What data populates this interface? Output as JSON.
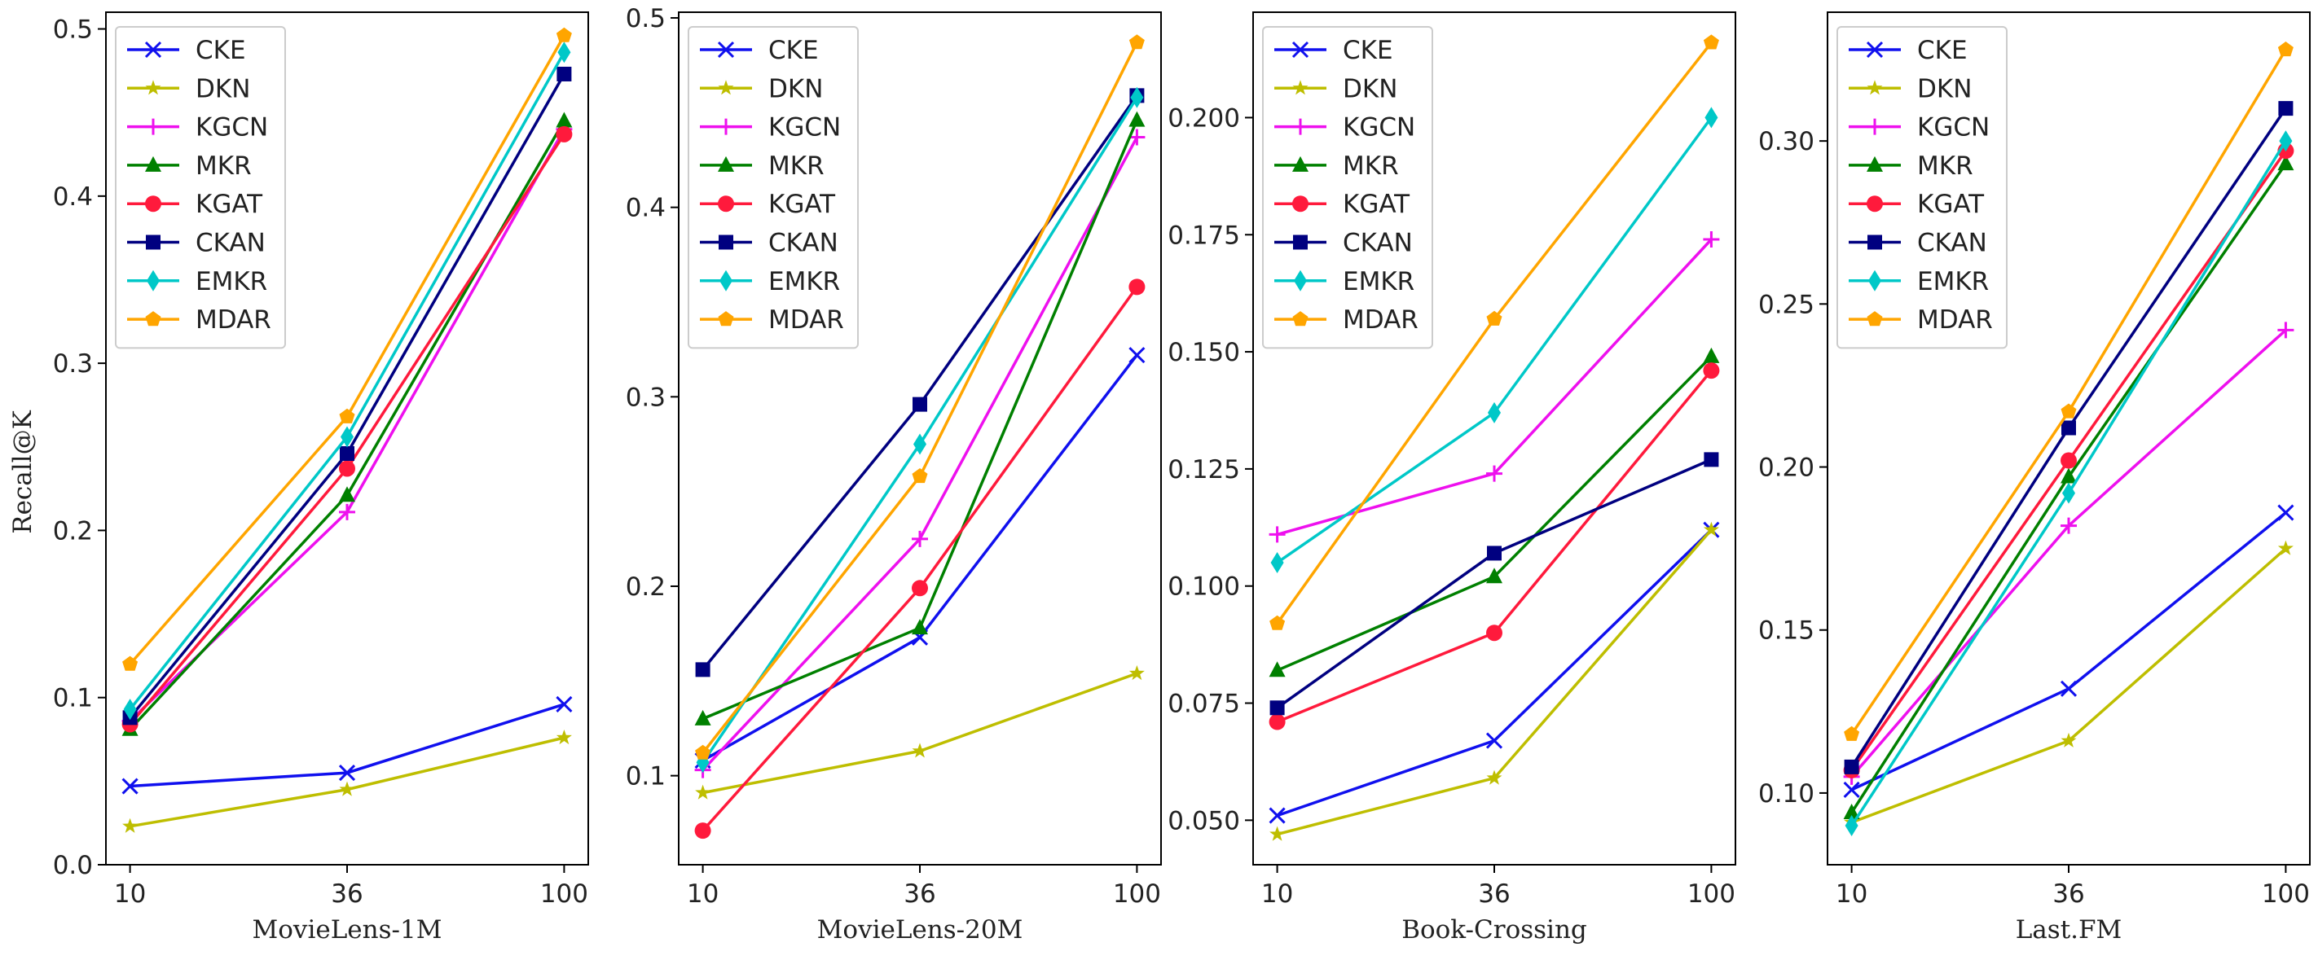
{
  "figure": {
    "ylabel": "Recall@K"
  },
  "chart_data": [
    {
      "type": "line",
      "xlabel": "MovieLens-1M",
      "ylabel": "Recall@K",
      "x": [
        10,
        36,
        100
      ],
      "x_ticks": [
        "10",
        "36",
        "100"
      ],
      "ylim": [
        0,
        0.51
      ],
      "y_ticks": [
        0.0,
        0.1,
        0.2,
        0.3,
        0.4,
        0.5
      ],
      "y_tick_labels": [
        "0.0",
        "0.1",
        "0.2",
        "0.3",
        "0.4",
        "0.5"
      ],
      "legend_position": "top-left",
      "grid": false,
      "series": [
        {
          "name": "CKE",
          "values": [
            0.047,
            0.055,
            0.096
          ]
        },
        {
          "name": "DKN",
          "values": [
            0.023,
            0.045,
            0.076
          ]
        },
        {
          "name": "KGCN",
          "values": [
            0.086,
            0.211,
            0.44
          ]
        },
        {
          "name": "MKR",
          "values": [
            0.081,
            0.221,
            0.445
          ]
        },
        {
          "name": "KGAT",
          "values": [
            0.084,
            0.237,
            0.437
          ]
        },
        {
          "name": "CKAN",
          "values": [
            0.088,
            0.246,
            0.473
          ]
        },
        {
          "name": "EMKR",
          "values": [
            0.093,
            0.256,
            0.486
          ]
        },
        {
          "name": "MDAR",
          "values": [
            0.12,
            0.268,
            0.496
          ]
        }
      ]
    },
    {
      "type": "line",
      "xlabel": "MovieLens-20M",
      "x": [
        10,
        36,
        100
      ],
      "x_ticks": [
        "10",
        "36",
        "100"
      ],
      "ylim": [
        0.053,
        0.503
      ],
      "y_ticks": [
        0.1,
        0.2,
        0.3,
        0.4,
        0.5
      ],
      "y_tick_labels": [
        "0.1",
        "0.2",
        "0.3",
        "0.4",
        "0.5"
      ],
      "legend_position": "top-left",
      "grid": false,
      "series": [
        {
          "name": "CKE",
          "values": [
            0.108,
            0.173,
            0.322
          ]
        },
        {
          "name": "DKN",
          "values": [
            0.091,
            0.113,
            0.154
          ]
        },
        {
          "name": "KGCN",
          "values": [
            0.103,
            0.225,
            0.437
          ]
        },
        {
          "name": "MKR",
          "values": [
            0.13,
            0.178,
            0.446
          ]
        },
        {
          "name": "KGAT",
          "values": [
            0.071,
            0.199,
            0.358
          ]
        },
        {
          "name": "CKAN",
          "values": [
            0.156,
            0.296,
            0.459
          ]
        },
        {
          "name": "EMKR",
          "values": [
            0.107,
            0.275,
            0.458
          ]
        },
        {
          "name": "MDAR",
          "values": [
            0.112,
            0.258,
            0.487
          ]
        }
      ]
    },
    {
      "type": "line",
      "xlabel": "Book-Crossing",
      "x": [
        10,
        36,
        100
      ],
      "x_ticks": [
        "10",
        "36",
        "100"
      ],
      "ylim": [
        0.0405,
        0.2225
      ],
      "y_ticks": [
        0.05,
        0.075,
        0.1,
        0.125,
        0.15,
        0.175,
        0.2
      ],
      "y_tick_labels": [
        "0.050",
        "0.075",
        "0.100",
        "0.125",
        "0.150",
        "0.175",
        "0.200"
      ],
      "legend_position": "top-left",
      "grid": false,
      "series": [
        {
          "name": "CKE",
          "values": [
            0.051,
            0.067,
            0.112
          ]
        },
        {
          "name": "DKN",
          "values": [
            0.047,
            0.059,
            0.112
          ]
        },
        {
          "name": "KGCN",
          "values": [
            0.111,
            0.124,
            0.174
          ]
        },
        {
          "name": "MKR",
          "values": [
            0.082,
            0.102,
            0.149
          ]
        },
        {
          "name": "KGAT",
          "values": [
            0.071,
            0.09,
            0.146
          ]
        },
        {
          "name": "CKAN",
          "values": [
            0.074,
            0.107,
            0.127
          ]
        },
        {
          "name": "EMKR",
          "values": [
            0.105,
            0.137,
            0.2
          ]
        },
        {
          "name": "MDAR",
          "values": [
            0.092,
            0.157,
            0.216
          ]
        }
      ]
    },
    {
      "type": "line",
      "xlabel": "Last.FM",
      "x": [
        10,
        36,
        100
      ],
      "x_ticks": [
        "10",
        "36",
        "100"
      ],
      "ylim": [
        0.078,
        0.3395
      ],
      "y_ticks": [
        0.1,
        0.15,
        0.2,
        0.25,
        0.3
      ],
      "y_tick_labels": [
        "0.10",
        "0.15",
        "0.20",
        "0.25",
        "0.30"
      ],
      "legend_position": "top-left",
      "grid": false,
      "series": [
        {
          "name": "CKE",
          "values": [
            0.101,
            0.132,
            0.186
          ]
        },
        {
          "name": "DKN",
          "values": [
            0.091,
            0.116,
            0.175
          ]
        },
        {
          "name": "KGCN",
          "values": [
            0.105,
            0.182,
            0.242
          ]
        },
        {
          "name": "MKR",
          "values": [
            0.094,
            0.197,
            0.293
          ]
        },
        {
          "name": "KGAT",
          "values": [
            0.107,
            0.202,
            0.297
          ]
        },
        {
          "name": "CKAN",
          "values": [
            0.108,
            0.212,
            0.31
          ]
        },
        {
          "name": "EMKR",
          "values": [
            0.09,
            0.192,
            0.3
          ]
        },
        {
          "name": "MDAR",
          "values": [
            0.118,
            0.217,
            0.328
          ]
        }
      ]
    }
  ],
  "series_styles": [
    {
      "name": "CKE",
      "color": "#1010ee",
      "marker": "x"
    },
    {
      "name": "DKN",
      "color": "#bebe00",
      "marker": "star"
    },
    {
      "name": "KGCN",
      "color": "#ee10ee",
      "marker": "plus"
    },
    {
      "name": "MKR",
      "color": "#008000",
      "marker": "triangle"
    },
    {
      "name": "KGAT",
      "color": "#ff1a3c",
      "marker": "circle"
    },
    {
      "name": "CKAN",
      "color": "#000080",
      "marker": "square"
    },
    {
      "name": "EMKR",
      "color": "#00c8c8",
      "marker": "diamond"
    },
    {
      "name": "MDAR",
      "color": "#ffa500",
      "marker": "pentagon"
    }
  ]
}
